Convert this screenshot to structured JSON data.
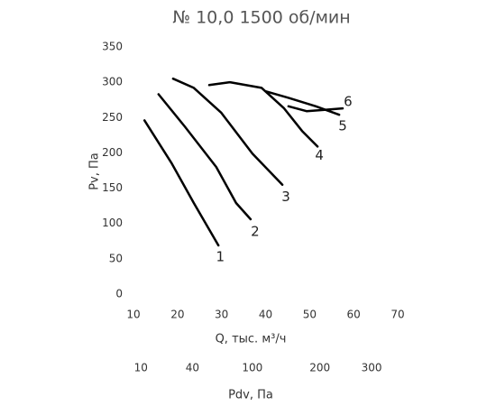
{
  "chart_data": {
    "type": "line",
    "title": "№ 10,0 1500 об/мин",
    "xlabel": "Q, тыс. м³/ч",
    "ylabel": "Pv, Па",
    "x2label": "Pdv, Па",
    "xlim": [
      10,
      70
    ],
    "xticks": [
      10,
      20,
      30,
      40,
      50,
      60,
      70
    ],
    "ylim": [
      0,
      350
    ],
    "yticks": [
      0,
      50,
      100,
      150,
      200,
      250,
      300,
      350
    ],
    "x2scale": "sqrt",
    "x2lim": [
      7.3,
      358
    ],
    "x2ticks": [
      10,
      40,
      100,
      200,
      300
    ],
    "grid": false,
    "series": [
      {
        "name": "1",
        "color": "#000000",
        "x": [
          12.5,
          18.6,
          23.7,
          29.3
        ],
        "values": [
          246,
          186,
          129,
          69
        ]
      },
      {
        "name": "2",
        "color": "#000000",
        "x": [
          15.7,
          21.7,
          28.8,
          33.3,
          36.6
        ],
        "values": [
          283,
          237,
          180,
          129,
          106
        ]
      },
      {
        "name": "3",
        "color": "#000000",
        "x": [
          19,
          23.7,
          29.9,
          37,
          43.8
        ],
        "values": [
          305,
          292,
          257,
          199,
          155
        ]
      },
      {
        "name": "4",
        "color": "#000000",
        "x": [
          27.2,
          31.9,
          39.1,
          44.2,
          48.3,
          51.8
        ],
        "values": [
          296,
          300,
          292,
          263,
          231,
          209
        ]
      },
      {
        "name": "5",
        "color": "#000000",
        "x": [
          40.1,
          45.2,
          51.4,
          56.7
        ],
        "values": [
          287,
          278,
          266,
          254
        ]
      },
      {
        "name": "6",
        "color": "#000000",
        "x": [
          45.2,
          49.3,
          53.4,
          57.5
        ],
        "values": [
          266,
          259,
          261,
          263
        ]
      }
    ]
  }
}
